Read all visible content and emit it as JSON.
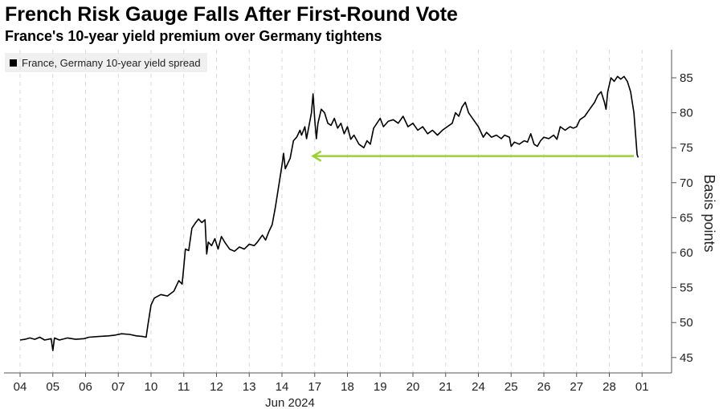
{
  "title": "French Risk Gauge Falls After First-Round Vote",
  "subtitle": "France's 10-year yield premium over Germany tightens",
  "colors": {
    "line": "#000000",
    "arrow": "#9bd036",
    "grid": "#d9d9d9",
    "legend_bg": "#f0f0f0"
  },
  "chart_data": {
    "type": "line",
    "legend": "France, Germany 10-year yield spread",
    "ylabel": "Basis points",
    "xlabel": "Jun 2024",
    "ylim": [
      44,
      89
    ],
    "yticks": [
      45,
      50,
      55,
      60,
      65,
      70,
      75,
      80,
      85
    ],
    "x_categories": [
      "04",
      "05",
      "06",
      "07",
      "10",
      "11",
      "12",
      "13",
      "14",
      "17",
      "18",
      "19",
      "20",
      "21",
      "24",
      "25",
      "26",
      "27",
      "28",
      "01"
    ],
    "grid": "vertical dashed",
    "series": [
      {
        "name": "France, Germany 10-year yield spread",
        "points": [
          [
            0.0,
            47.5
          ],
          [
            0.15,
            47.6
          ],
          [
            0.3,
            47.8
          ],
          [
            0.45,
            47.6
          ],
          [
            0.6,
            47.9
          ],
          [
            0.75,
            47.5
          ],
          [
            0.95,
            47.7
          ],
          [
            1.0,
            46.0
          ],
          [
            1.05,
            47.8
          ],
          [
            1.2,
            47.5
          ],
          [
            1.45,
            47.8
          ],
          [
            1.7,
            47.6
          ],
          [
            1.95,
            47.7
          ],
          [
            2.1,
            47.9
          ],
          [
            2.4,
            48.0
          ],
          [
            2.7,
            48.1
          ],
          [
            2.9,
            48.2
          ],
          [
            3.1,
            48.4
          ],
          [
            3.35,
            48.3
          ],
          [
            3.55,
            48.1
          ],
          [
            3.75,
            48.0
          ],
          [
            3.85,
            47.9
          ],
          [
            3.9,
            49.5
          ],
          [
            4.0,
            52.5
          ],
          [
            4.1,
            53.5
          ],
          [
            4.3,
            54.0
          ],
          [
            4.5,
            53.8
          ],
          [
            4.7,
            54.5
          ],
          [
            4.8,
            55.5
          ],
          [
            4.85,
            56.0
          ],
          [
            4.95,
            55.5
          ],
          [
            5.0,
            58.0
          ],
          [
            5.05,
            60.5
          ],
          [
            5.15,
            60.3
          ],
          [
            5.25,
            63.5
          ],
          [
            5.35,
            64.2
          ],
          [
            5.45,
            64.8
          ],
          [
            5.55,
            64.3
          ],
          [
            5.65,
            64.7
          ],
          [
            5.7,
            59.8
          ],
          [
            5.75,
            61.5
          ],
          [
            5.85,
            61.0
          ],
          [
            5.95,
            62.0
          ],
          [
            6.05,
            60.5
          ],
          [
            6.15,
            62.3
          ],
          [
            6.25,
            61.5
          ],
          [
            6.4,
            60.5
          ],
          [
            6.55,
            60.2
          ],
          [
            6.7,
            60.8
          ],
          [
            6.85,
            60.5
          ],
          [
            7.0,
            61.2
          ],
          [
            7.15,
            61.0
          ],
          [
            7.25,
            61.5
          ],
          [
            7.4,
            62.5
          ],
          [
            7.5,
            61.8
          ],
          [
            7.6,
            63.0
          ],
          [
            7.7,
            64.0
          ],
          [
            7.8,
            66.5
          ],
          [
            7.9,
            69.5
          ],
          [
            8.0,
            72.5
          ],
          [
            8.05,
            74.2
          ],
          [
            8.1,
            72.0
          ],
          [
            8.25,
            73.5
          ],
          [
            8.35,
            76.0
          ],
          [
            8.45,
            76.5
          ],
          [
            8.55,
            77.5
          ],
          [
            8.6,
            76.8
          ],
          [
            8.7,
            78.0
          ],
          [
            8.75,
            76.3
          ],
          [
            8.8,
            77.5
          ],
          [
            8.9,
            80.0
          ],
          [
            8.95,
            82.7
          ],
          [
            9.0,
            79.0
          ],
          [
            9.05,
            76.3
          ],
          [
            9.1,
            78.5
          ],
          [
            9.2,
            80.5
          ],
          [
            9.3,
            80.0
          ],
          [
            9.4,
            78.5
          ],
          [
            9.5,
            78.2
          ],
          [
            9.6,
            79.2
          ],
          [
            9.7,
            77.8
          ],
          [
            9.8,
            78.5
          ],
          [
            9.9,
            77.0
          ],
          [
            10.0,
            78.0
          ],
          [
            10.1,
            76.2
          ],
          [
            10.2,
            76.8
          ],
          [
            10.35,
            75.5
          ],
          [
            10.5,
            75.0
          ],
          [
            10.6,
            76.0
          ],
          [
            10.7,
            75.5
          ],
          [
            10.8,
            77.8
          ],
          [
            10.9,
            78.5
          ],
          [
            11.0,
            79.2
          ],
          [
            11.1,
            78.0
          ],
          [
            11.25,
            78.8
          ],
          [
            11.4,
            79.0
          ],
          [
            11.55,
            78.5
          ],
          [
            11.7,
            79.5
          ],
          [
            11.85,
            78.0
          ],
          [
            12.0,
            78.5
          ],
          [
            12.15,
            77.5
          ],
          [
            12.3,
            78.0
          ],
          [
            12.45,
            77.0
          ],
          [
            12.6,
            77.5
          ],
          [
            12.75,
            76.8
          ],
          [
            12.9,
            77.5
          ],
          [
            13.05,
            78.0
          ],
          [
            13.2,
            78.5
          ],
          [
            13.3,
            80.0
          ],
          [
            13.4,
            79.5
          ],
          [
            13.5,
            80.8
          ],
          [
            13.6,
            81.5
          ],
          [
            13.7,
            80.0
          ],
          [
            13.85,
            79.0
          ],
          [
            14.0,
            78.0
          ],
          [
            14.15,
            76.5
          ],
          [
            14.25,
            77.2
          ],
          [
            14.4,
            76.5
          ],
          [
            14.55,
            76.8
          ],
          [
            14.7,
            76.3
          ],
          [
            14.8,
            76.8
          ],
          [
            14.95,
            76.5
          ],
          [
            15.0,
            75.2
          ],
          [
            15.1,
            75.8
          ],
          [
            15.25,
            75.5
          ],
          [
            15.4,
            76.0
          ],
          [
            15.5,
            75.8
          ],
          [
            15.6,
            77.0
          ],
          [
            15.7,
            75.5
          ],
          [
            15.8,
            75.2
          ],
          [
            15.9,
            76.0
          ],
          [
            16.0,
            76.5
          ],
          [
            16.15,
            76.3
          ],
          [
            16.3,
            76.8
          ],
          [
            16.4,
            76.2
          ],
          [
            16.5,
            78.0
          ],
          [
            16.65,
            77.5
          ],
          [
            16.8,
            78.0
          ],
          [
            16.9,
            77.8
          ],
          [
            17.0,
            78.0
          ],
          [
            17.1,
            79.0
          ],
          [
            17.25,
            79.5
          ],
          [
            17.4,
            80.5
          ],
          [
            17.55,
            81.5
          ],
          [
            17.65,
            82.5
          ],
          [
            17.75,
            83.0
          ],
          [
            17.85,
            81.5
          ],
          [
            17.9,
            80.5
          ],
          [
            17.95,
            83.0
          ],
          [
            18.05,
            85.0
          ],
          [
            18.15,
            84.5
          ],
          [
            18.25,
            85.2
          ],
          [
            18.35,
            84.8
          ],
          [
            18.45,
            85.2
          ],
          [
            18.55,
            84.5
          ],
          [
            18.65,
            83.0
          ],
          [
            18.75,
            80.0
          ],
          [
            18.85,
            74.0
          ],
          [
            18.88,
            73.6
          ]
        ]
      }
    ],
    "annotation": {
      "type": "arrow",
      "from": [
        18.75,
        73.8
      ],
      "to": [
        8.95,
        73.8
      ]
    }
  }
}
